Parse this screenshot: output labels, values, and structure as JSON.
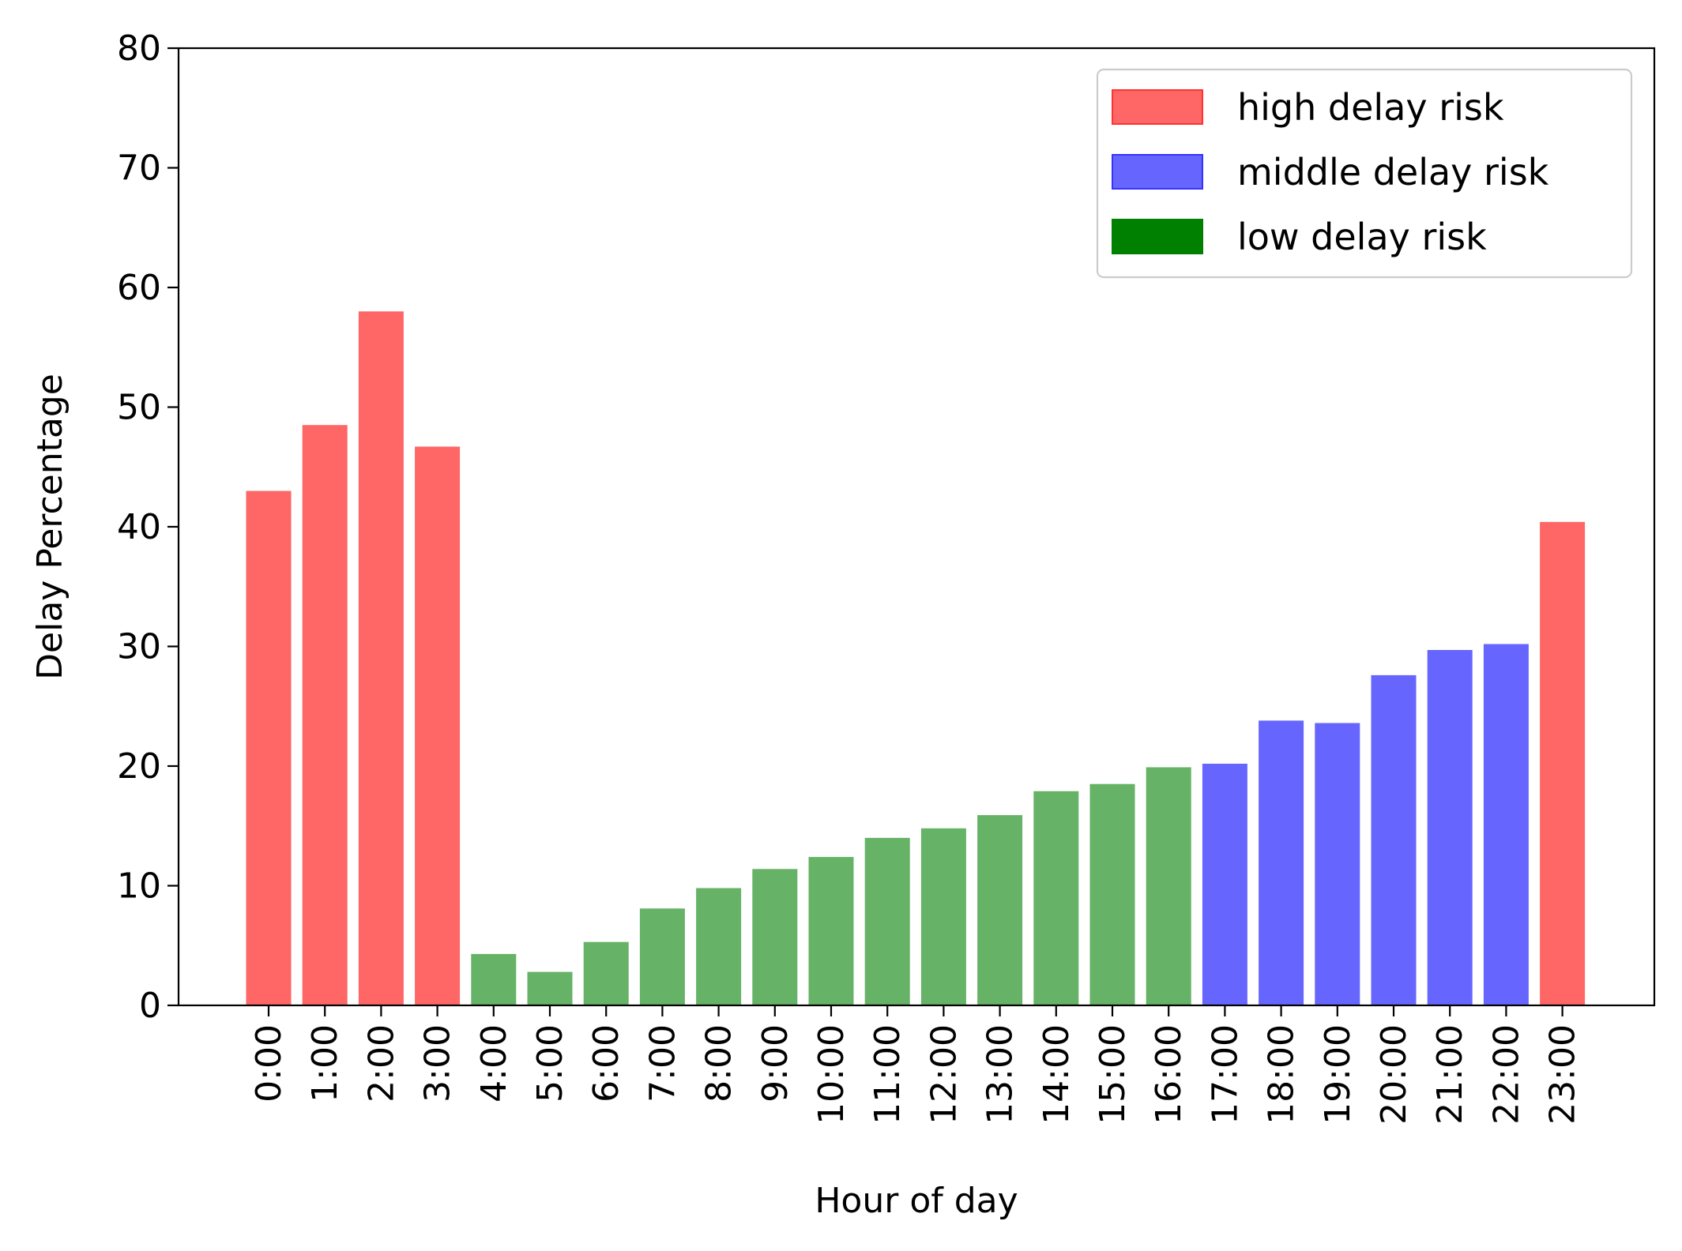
{
  "chart_data": {
    "type": "bar",
    "xlabel": "Hour of day",
    "ylabel": "Delay Percentage",
    "ylim": [
      0,
      80
    ],
    "yticks": [
      0,
      10,
      20,
      30,
      40,
      50,
      60,
      70,
      80
    ],
    "categories": [
      "0:00",
      "1:00",
      "2:00",
      "3:00",
      "4:00",
      "5:00",
      "6:00",
      "7:00",
      "8:00",
      "9:00",
      "10:00",
      "11:00",
      "12:00",
      "13:00",
      "14:00",
      "15:00",
      "16:00",
      "17:00",
      "18:00",
      "19:00",
      "20:00",
      "21:00",
      "22:00",
      "23:00"
    ],
    "values": [
      43.0,
      48.5,
      58.0,
      46.7,
      4.3,
      2.8,
      5.3,
      8.1,
      9.8,
      11.4,
      12.4,
      14.0,
      14.8,
      15.9,
      17.9,
      18.5,
      19.9,
      20.2,
      23.8,
      23.6,
      27.6,
      29.7,
      30.2,
      40.4
    ],
    "risk": [
      "high",
      "high",
      "high",
      "high",
      "low",
      "low",
      "low",
      "low",
      "low",
      "low",
      "low",
      "low",
      "low",
      "low",
      "low",
      "low",
      "low",
      "middle",
      "middle",
      "middle",
      "middle",
      "middle",
      "middle",
      "high"
    ],
    "colors": {
      "high": "#ff6666",
      "middle": "#6666ff",
      "low": "#66b266"
    },
    "legend": {
      "position": "top-right",
      "entries": [
        {
          "key": "high",
          "label": "high delay risk",
          "swatch": "#ff6666",
          "edge": "#ff3333"
        },
        {
          "key": "middle",
          "label": "middle delay risk",
          "swatch": "#6666ff",
          "edge": "#3333ff"
        },
        {
          "key": "low",
          "label": "low delay risk",
          "swatch": "#008000",
          "edge": "#008000"
        }
      ]
    },
    "grid": false
  }
}
